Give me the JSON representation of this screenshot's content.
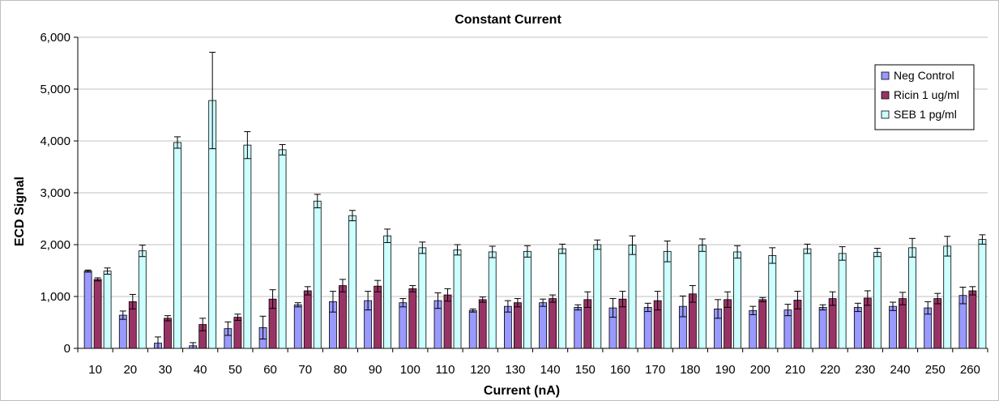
{
  "chart_data": {
    "type": "bar",
    "title": "Constant Current",
    "xlabel": "Current (nA)",
    "ylabel": "ECD Signal",
    "ylim": [
      0,
      6000
    ],
    "yticks": [
      "0",
      "1,000",
      "2,000",
      "3,000",
      "4,000",
      "5,000",
      "6,000"
    ],
    "ytick_values": [
      0,
      1000,
      2000,
      3000,
      4000,
      5000,
      6000
    ],
    "grid": true,
    "legend_position": "right",
    "categories": [
      "10",
      "20",
      "30",
      "40",
      "50",
      "60",
      "70",
      "80",
      "90",
      "100",
      "110",
      "120",
      "130",
      "140",
      "150",
      "160",
      "170",
      "180",
      "190",
      "200",
      "210",
      "220",
      "230",
      "240",
      "250",
      "260"
    ],
    "series": [
      {
        "name": "Neg Control",
        "color": "#9999ff",
        "values": [
          1490,
          640,
          100,
          50,
          380,
          400,
          840,
          900,
          920,
          880,
          920,
          730,
          810,
          880,
          790,
          780,
          790,
          810,
          760,
          730,
          740,
          790,
          790,
          810,
          780,
          1020
        ],
        "errors": [
          20,
          80,
          120,
          60,
          130,
          220,
          40,
          200,
          180,
          80,
          150,
          30,
          110,
          70,
          50,
          180,
          80,
          200,
          180,
          80,
          110,
          50,
          80,
          80,
          120,
          160
        ]
      },
      {
        "name": "Ricin 1 ug/ml",
        "color": "#993366",
        "values": [
          1330,
          900,
          580,
          460,
          600,
          950,
          1110,
          1210,
          1200,
          1150,
          1030,
          940,
          880,
          960,
          940,
          950,
          920,
          1050,
          940,
          940,
          930,
          960,
          970,
          960,
          960,
          1110
        ],
        "errors": [
          30,
          140,
          50,
          120,
          60,
          180,
          80,
          120,
          110,
          60,
          120,
          50,
          80,
          70,
          150,
          150,
          180,
          160,
          150,
          40,
          170,
          130,
          140,
          120,
          100,
          80
        ]
      },
      {
        "name": "SEB 1 pg/ml",
        "color": "#ccffff",
        "values": [
          1490,
          1880,
          3970,
          4780,
          3920,
          3830,
          2840,
          2560,
          2170,
          1940,
          1900,
          1860,
          1870,
          1920,
          2000,
          1990,
          1870,
          1990,
          1860,
          1790,
          1920,
          1830,
          1850,
          1940,
          1970,
          2100
        ],
        "errors": [
          60,
          110,
          110,
          930,
          260,
          100,
          130,
          100,
          130,
          110,
          100,
          110,
          110,
          90,
          90,
          180,
          200,
          120,
          120,
          150,
          90,
          130,
          80,
          180,
          190,
          90
        ]
      }
    ]
  }
}
